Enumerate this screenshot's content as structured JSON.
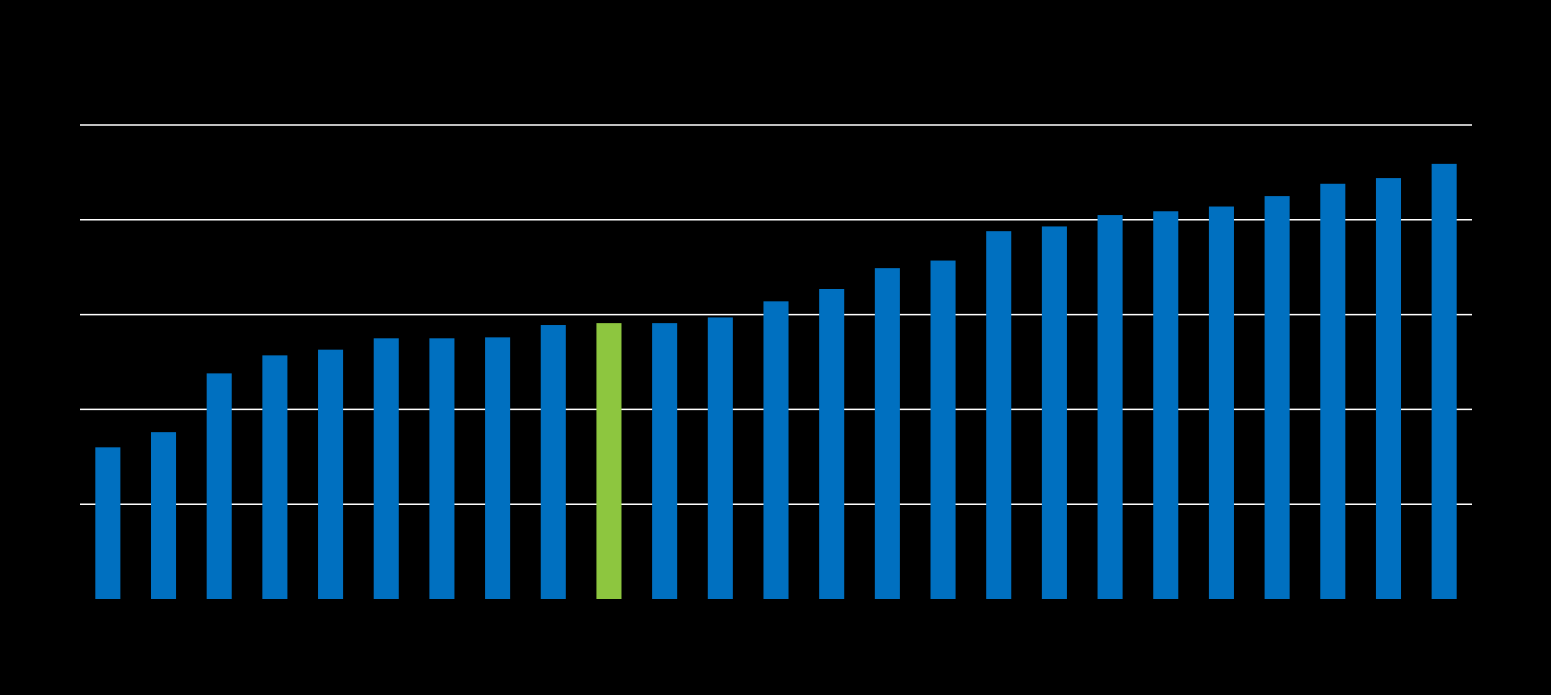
{
  "chart_data": {
    "type": "bar",
    "categories": [
      null,
      null,
      null,
      null,
      null,
      null,
      null,
      null,
      null,
      null,
      null,
      null,
      null,
      null,
      null,
      null,
      null,
      null,
      null,
      null,
      null,
      null,
      null,
      null,
      null
    ],
    "values": [
      1.6,
      1.76,
      2.38,
      2.57,
      2.63,
      2.75,
      2.75,
      2.76,
      2.89,
      2.91,
      2.91,
      2.97,
      3.14,
      3.27,
      3.49,
      3.57,
      3.88,
      3.93,
      4.05,
      4.09,
      4.14,
      4.25,
      4.38,
      4.44,
      4.59
    ],
    "colors": [
      "#0070c0",
      "#0070c0",
      "#0070c0",
      "#0070c0",
      "#0070c0",
      "#0070c0",
      "#0070c0",
      "#0070c0",
      "#0070c0",
      "#8dc63f",
      "#0070c0",
      "#0070c0",
      "#0070c0",
      "#0070c0",
      "#0070c0",
      "#0070c0",
      "#0070c0",
      "#0070c0",
      "#0070c0",
      "#0070c0",
      "#0070c0",
      "#0070c0",
      "#0070c0",
      "#0070c0",
      "#0070c0"
    ],
    "ylim": [
      0,
      5
    ],
    "yticks": [
      1,
      2,
      3,
      4,
      5
    ],
    "grid": true,
    "grid_color": "#ffffff"
  }
}
